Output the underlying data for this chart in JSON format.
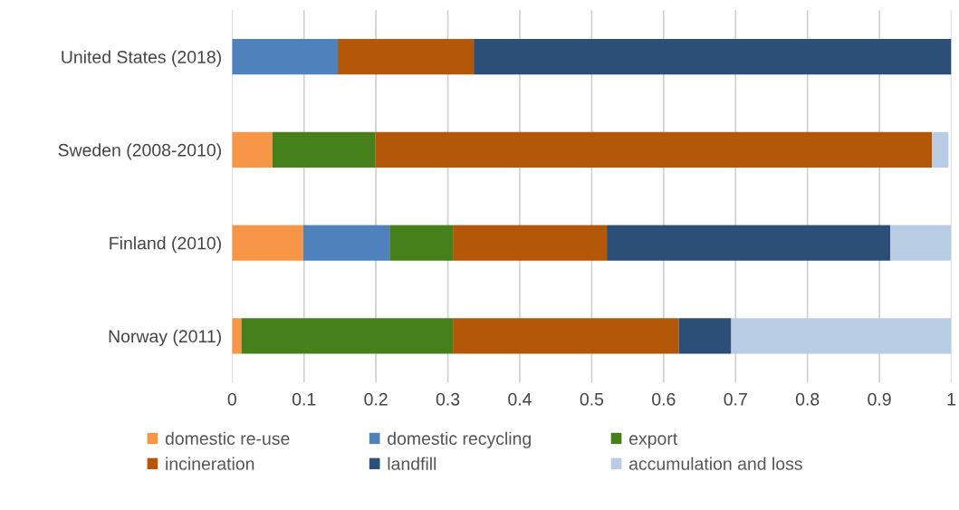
{
  "chart_data": {
    "type": "bar",
    "orientation": "horizontal",
    "stacked": true,
    "categories": [
      "United States (2018)",
      "Sweden (2008-2010)",
      "Finland (2010)",
      "Norway (2011)"
    ],
    "series": [
      {
        "name": "domestic re-use",
        "color": "#f79646",
        "values": [
          null,
          0.056,
          0.099,
          0.013
        ]
      },
      {
        "name": "domestic recycling",
        "color": "#4f81bd",
        "values": [
          0.147,
          null,
          0.12,
          null
        ]
      },
      {
        "name": "export",
        "color": "#46801a",
        "values": [
          null,
          0.143,
          0.088,
          0.294
        ]
      },
      {
        "name": "incineration",
        "color": "#b45708",
        "values": [
          0.189,
          0.774,
          0.214,
          0.314
        ]
      },
      {
        "name": "landfill",
        "color": "#2c4f77",
        "values": [
          0.664,
          null,
          0.394,
          0.073
        ]
      },
      {
        "name": "accumulation and loss",
        "color": "#b8cce4",
        "values": [
          null,
          0.023,
          0.085,
          0.306
        ]
      }
    ],
    "xlim": [
      0,
      1
    ],
    "xticks": [
      0,
      0.1,
      0.2,
      0.3,
      0.4,
      0.5,
      0.6,
      0.7,
      0.8,
      0.9,
      1
    ],
    "grid": "x",
    "legend": "bottom"
  }
}
